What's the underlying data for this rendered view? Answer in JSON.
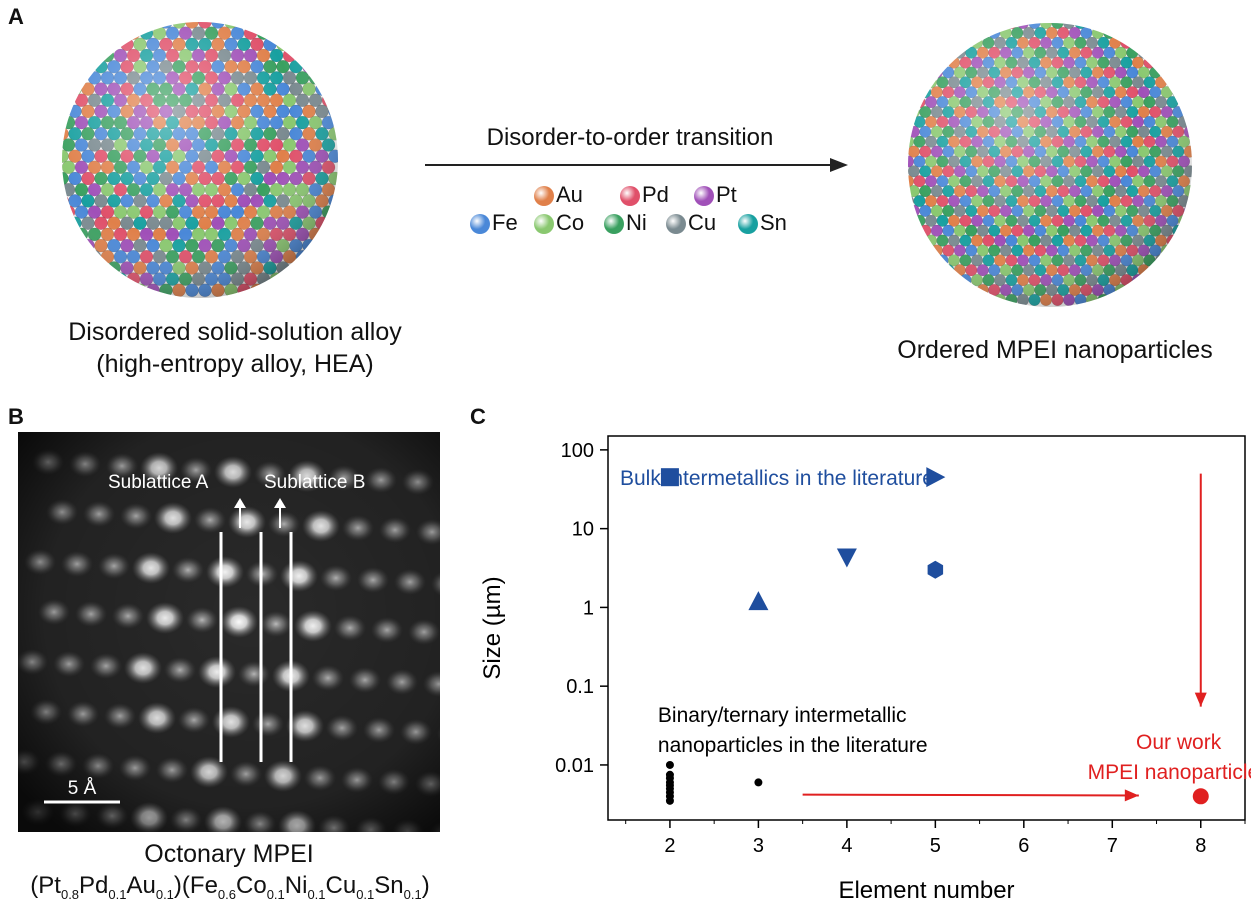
{
  "panel_a": {
    "letter": "A",
    "arrow_label": "Disorder-to-order transition",
    "left_caption": [
      "Disordered solid-solution alloy",
      "(high-entropy alloy, HEA)"
    ],
    "right_caption": "Ordered MPEI nanoparticles",
    "elements": [
      {
        "symbol": "Au",
        "color": "#e0804a"
      },
      {
        "symbol": "Pd",
        "color": "#e0506a"
      },
      {
        "symbol": "Pt",
        "color": "#a050b8"
      },
      {
        "symbol": "Fe",
        "color": "#4a88d8"
      },
      {
        "symbol": "Co",
        "color": "#8ac870"
      },
      {
        "symbol": "Ni",
        "color": "#3aa060"
      },
      {
        "symbol": "Cu",
        "color": "#7a8a90"
      },
      {
        "symbol": "Sn",
        "color": "#18a0a0"
      }
    ]
  },
  "panel_b": {
    "letter": "B",
    "sublattice_a": "Sublattice A",
    "sublattice_b": "Sublattice B",
    "scale_bar": "5 Å",
    "caption_line1": "Octonary MPEI",
    "formula": {
      "open1": "(",
      "Pt": "Pt",
      "Pt_sub": "0.8",
      "Pd": "Pd",
      "Pd_sub": "0.1",
      "Au": "Au",
      "Au_sub": "0.1",
      "mid": ")(",
      "Fe": "Fe",
      "Fe_sub": "0.6",
      "Co": "Co",
      "Co_sub": "0.1",
      "Ni": "Ni",
      "Ni_sub": "0.1",
      "Cu": "Cu",
      "Cu_sub": "0.1",
      "Sn": "Sn",
      "Sn_sub": "0.1",
      "close": ")"
    }
  },
  "panel_c": {
    "letter": "C",
    "chart_data": {
      "type": "scatter",
      "xlabel": "Element number",
      "ylabel": "Size (µm)",
      "xlim": [
        1.3,
        8.5
      ],
      "ylim": [
        0.002,
        150
      ],
      "yscale": "log",
      "x_ticks": [
        2,
        3,
        4,
        5,
        6,
        7,
        8
      ],
      "x_tick_labels": [
        "2",
        "3",
        "4",
        "5",
        "6",
        "7",
        "8"
      ],
      "y_ticks": [
        0.01,
        0.1,
        1,
        10,
        100
      ],
      "y_tick_labels": [
        "0.01",
        "0.1",
        "1",
        "10",
        "100"
      ],
      "series": [
        {
          "name": "Bulk intermetallics in the literature",
          "color": "#1f4e9e",
          "points": [
            {
              "x": 2,
              "y": 45,
              "marker": "square"
            },
            {
              "x": 3,
              "y": 1.2,
              "marker": "triangle-up"
            },
            {
              "x": 4,
              "y": 4.3,
              "marker": "triangle-down"
            },
            {
              "x": 5,
              "y": 45,
              "marker": "triangle-right"
            },
            {
              "x": 5,
              "y": 3.0,
              "marker": "hexagon"
            }
          ]
        },
        {
          "name": "Binary/ternary intermetallic nanoparticles in the literature",
          "name_lines": [
            "Binary/ternary intermetallic",
            "nanoparticles in the literature"
          ],
          "color": "#000000",
          "points": [
            {
              "x": 2,
              "y": 0.0035
            },
            {
              "x": 2,
              "y": 0.004
            },
            {
              "x": 2,
              "y": 0.0045
            },
            {
              "x": 2,
              "y": 0.005
            },
            {
              "x": 2,
              "y": 0.0055
            },
            {
              "x": 2,
              "y": 0.006
            },
            {
              "x": 2,
              "y": 0.0068
            },
            {
              "x": 2,
              "y": 0.0075
            },
            {
              "x": 2,
              "y": 0.01
            },
            {
              "x": 3,
              "y": 0.006
            }
          ]
        },
        {
          "name": "Our work MPEI nanoparticles",
          "name_lines": [
            "Our work",
            "MPEI nanoparticles"
          ],
          "color": "#e02020",
          "points": [
            {
              "x": 8,
              "y": 0.004
            }
          ]
        }
      ],
      "annotations": [
        {
          "type": "arrow",
          "from": [
            3.5,
            0.0042
          ],
          "to": [
            7.3,
            0.0041
          ],
          "color": "#e02020"
        },
        {
          "type": "arrow",
          "from": [
            8,
            50
          ],
          "to": [
            8,
            0.055
          ],
          "color": "#e02020"
        }
      ]
    }
  }
}
